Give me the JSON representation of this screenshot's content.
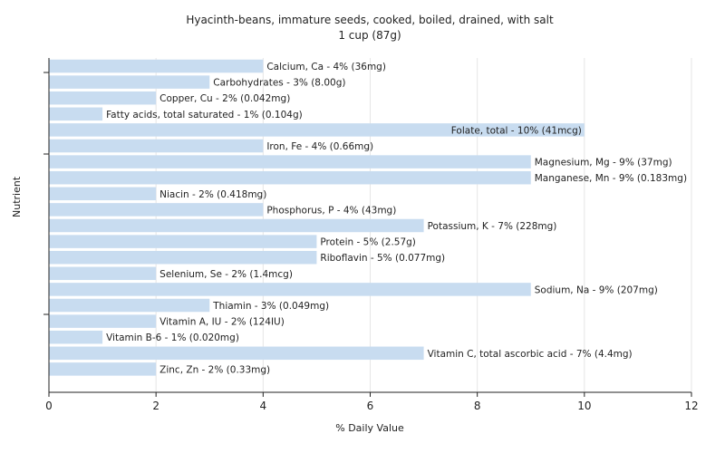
{
  "chart_data": {
    "type": "bar",
    "orientation": "horizontal",
    "title": "Hyacinth-beans, immature seeds, cooked, boiled, drained, with salt",
    "subtitle": "1 cup (87g)",
    "xlabel": "% Daily Value",
    "ylabel": "Nutrient",
    "xlim": [
      0,
      12
    ],
    "xticks": [
      0,
      2,
      4,
      6,
      8,
      10,
      12
    ],
    "grid": true,
    "bar_color": "#c8dcf0",
    "categories": [
      "Calcium, Ca",
      "Carbohydrates",
      "Copper, Cu",
      "Fatty acids, total saturated",
      "Folate, total",
      "Iron, Fe",
      "Magnesium, Mg",
      "Manganese, Mn",
      "Niacin",
      "Phosphorus, P",
      "Potassium, K",
      "Protein",
      "Riboflavin",
      "Selenium, Se",
      "Sodium, Na",
      "Thiamin",
      "Vitamin A, IU",
      "Vitamin B-6",
      "Vitamin C, total ascorbic acid",
      "Zinc, Zn"
    ],
    "values": [
      4,
      3,
      2,
      1,
      10,
      4,
      9,
      9,
      2,
      4,
      7,
      5,
      5,
      2,
      9,
      3,
      2,
      1,
      7,
      2
    ],
    "labels": [
      "Calcium, Ca - 4% (36mg)",
      "Carbohydrates - 3% (8.00g)",
      "Copper, Cu - 2% (0.042mg)",
      "Fatty acids, total saturated - 1% (0.104g)",
      "Folate, total - 10% (41mcg)",
      "Iron, Fe - 4% (0.66mg)",
      "Magnesium, Mg - 9% (37mg)",
      "Manganese, Mn - 9% (0.183mg)",
      "Niacin - 2% (0.418mg)",
      "Phosphorus, P - 4% (43mg)",
      "Potassium, K - 7% (228mg)",
      "Protein - 5% (2.57g)",
      "Riboflavin - 5% (0.077mg)",
      "Selenium, Se - 2% (1.4mcg)",
      "Sodium, Na - 9% (207mg)",
      "Thiamin - 3% (0.049mg)",
      "Vitamin A, IU - 2% (124IU)",
      "Vitamin B-6 - 1% (0.020mg)",
      "Vitamin C, total ascorbic acid - 7% (4.4mg)",
      "Zinc, Zn - 2% (0.33mg)"
    ]
  }
}
